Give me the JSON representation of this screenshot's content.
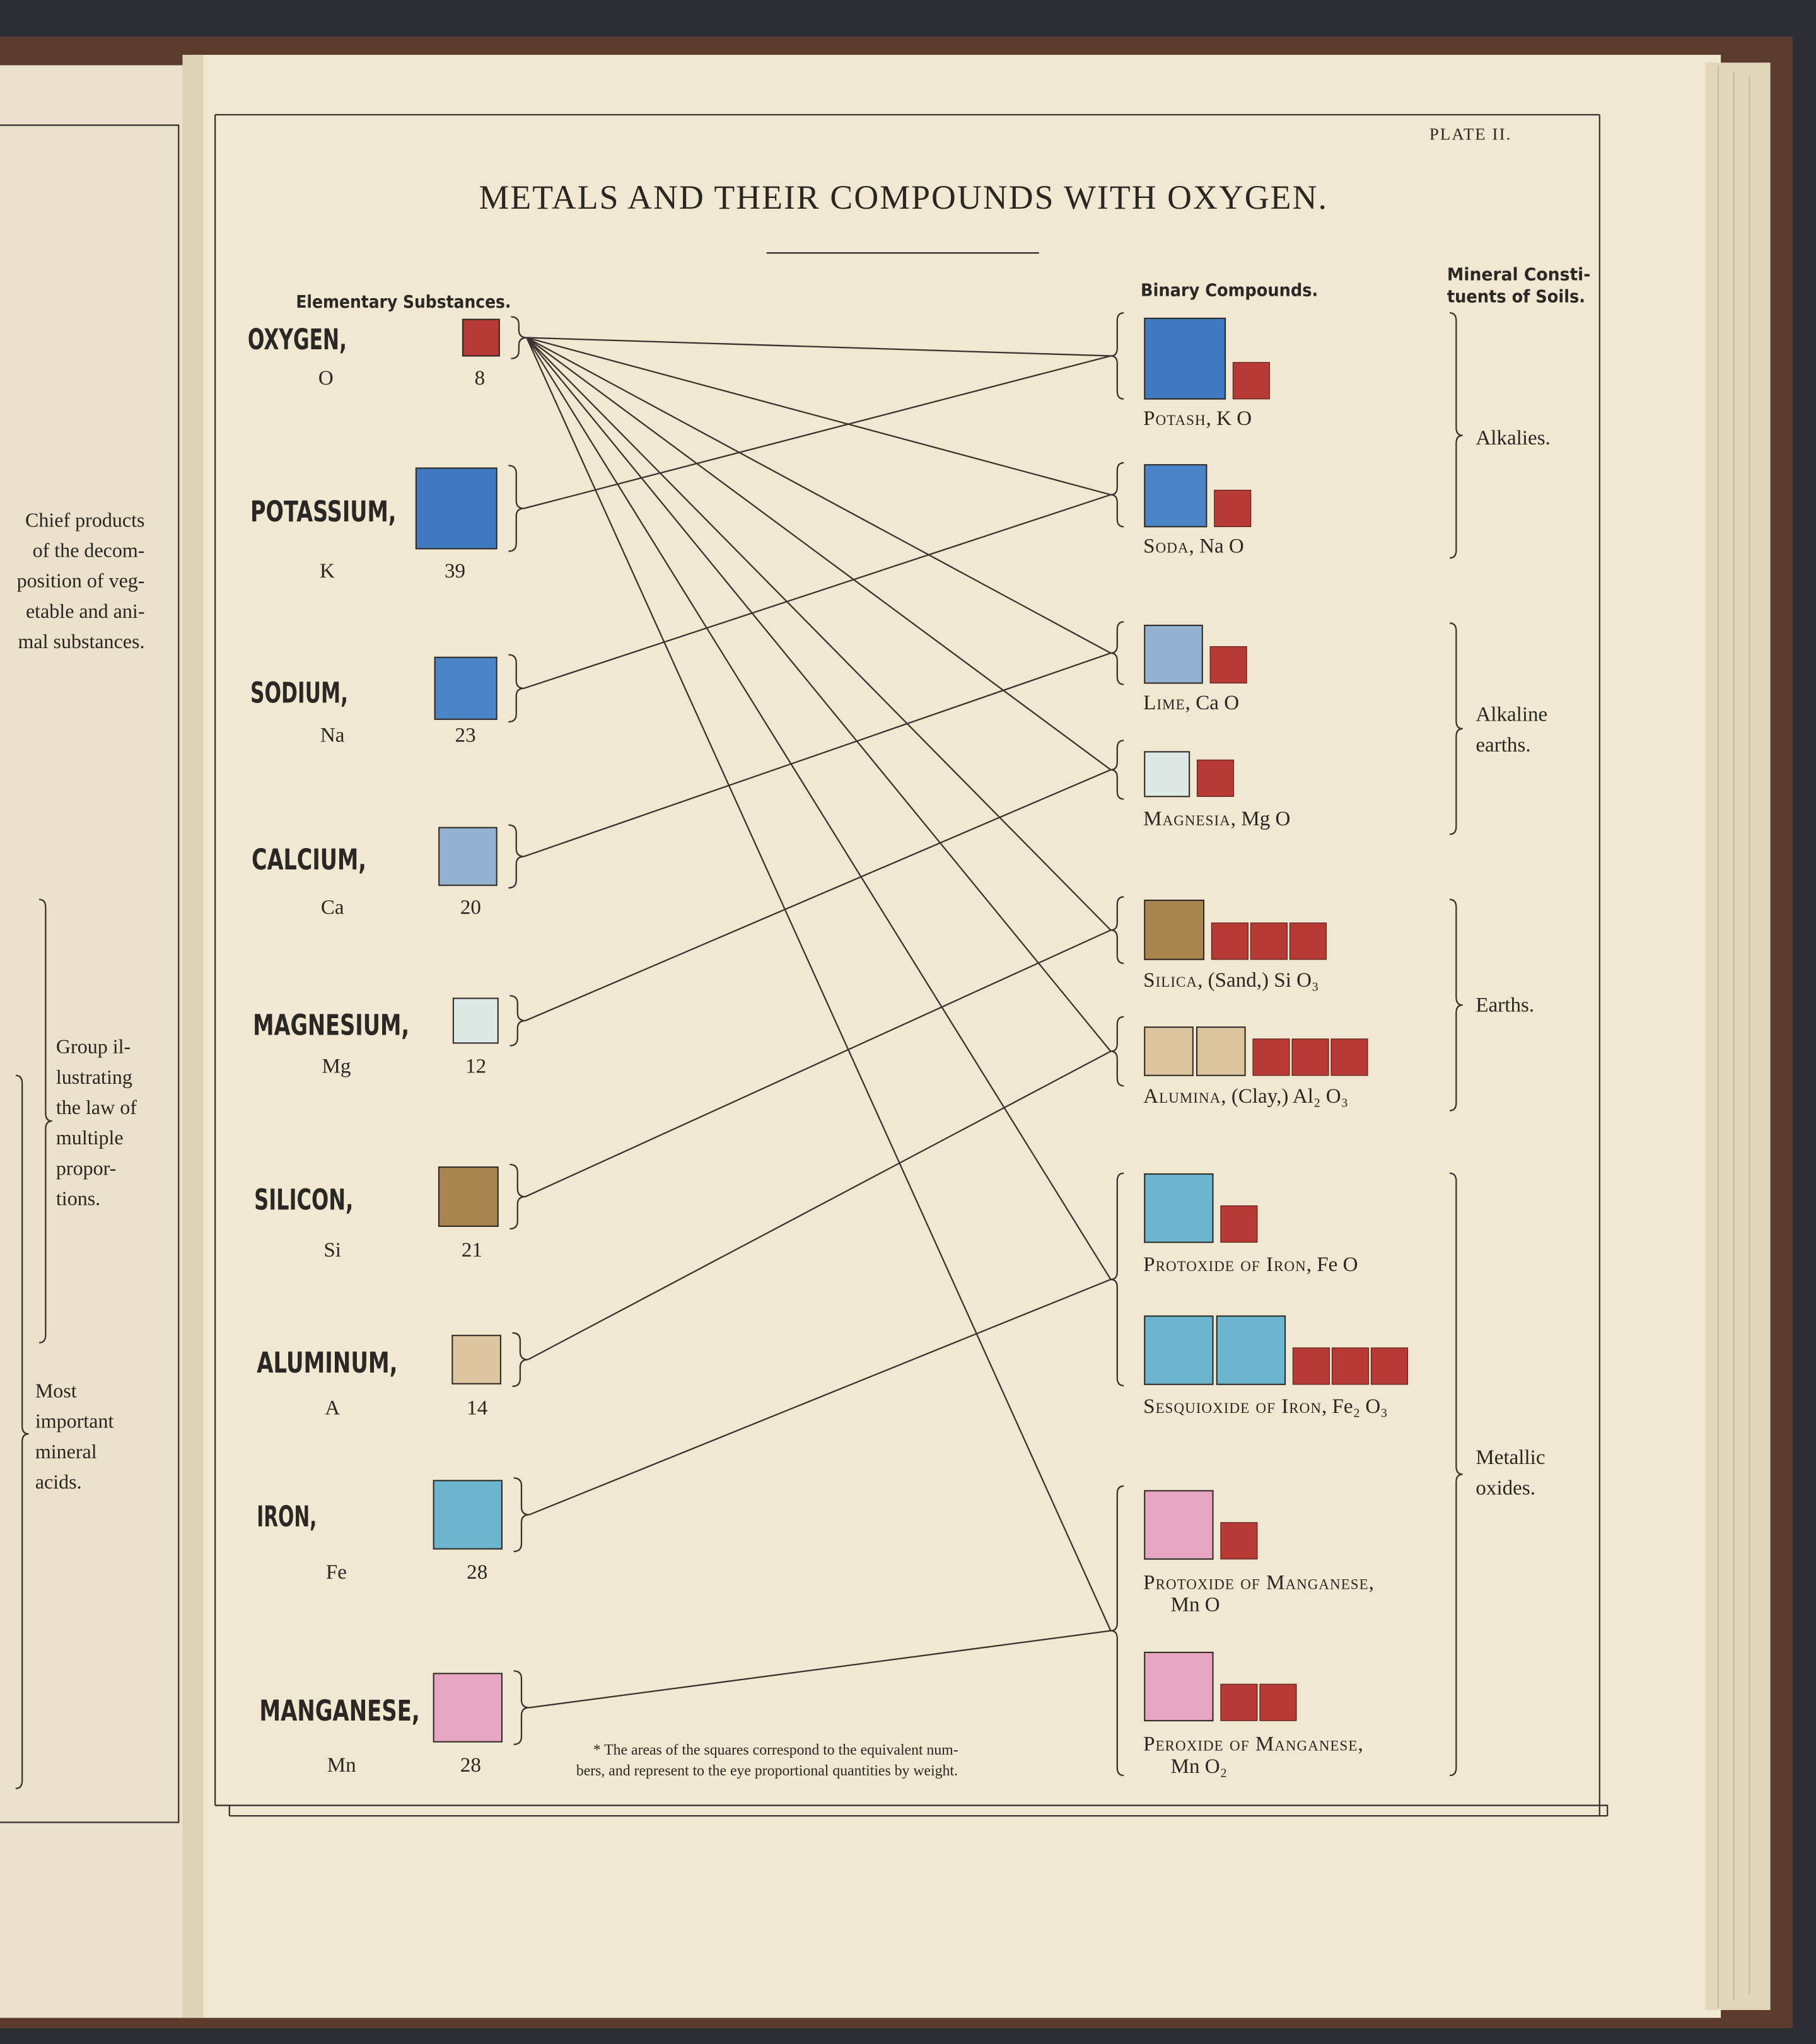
{
  "left_page": {
    "note_1": [
      "Chief products",
      "of the decom-",
      "position of veg-",
      "etable and ani-",
      "mal substances."
    ],
    "note_2": [
      "Group il-",
      "lustrating",
      "the law of",
      "multiple",
      "propor-",
      "tions."
    ],
    "note_3": [
      "Most",
      "important",
      "mineral",
      "acids."
    ]
  },
  "plate": "PLATE II.",
  "title": "METALS AND THEIR COMPOUNDS WITH OXYGEN.",
  "headers": {
    "elementary": "Elementary Substances.",
    "binary": "Binary Compounds.",
    "mineral": [
      "Mineral Consti-",
      "tuents of Soils."
    ]
  },
  "elements": [
    {
      "name": "OXYGEN,",
      "symbol": "O",
      "equivalent": "8"
    },
    {
      "name": "POTASSIUM,",
      "symbol": "K",
      "equivalent": "39"
    },
    {
      "name": "SODIUM,",
      "symbol": "Na",
      "equivalent": "23"
    },
    {
      "name": "CALCIUM,",
      "symbol": "Ca",
      "equivalent": "20"
    },
    {
      "name": "MAGNESIUM,",
      "symbol": "Mg",
      "equivalent": "12"
    },
    {
      "name": "SILICON,",
      "symbol": "Si",
      "equivalent": "21"
    },
    {
      "name": "ALUMINUM,",
      "symbol": "A",
      "equivalent": "14"
    },
    {
      "name": "IRON,",
      "symbol": "Fe",
      "equivalent": "28"
    },
    {
      "name": "MANGANESE,",
      "symbol": "Mn",
      "equivalent": "28"
    }
  ],
  "compounds": [
    {
      "label": [
        "Potash, K O"
      ]
    },
    {
      "label": [
        "Soda, Na O"
      ]
    },
    {
      "label": [
        "Lime, Ca O"
      ]
    },
    {
      "label": [
        "Magnesia, Mg O"
      ]
    },
    {
      "label": [
        "Silica, (Sand,) Si O₃"
      ]
    },
    {
      "label": [
        "Alumina, (Clay,) Al₂ O₃"
      ]
    },
    {
      "label": [
        "Protoxide of Iron, Fe O"
      ]
    },
    {
      "label": [
        "Sesquioxide of Iron, Fe₂ O₃"
      ]
    },
    {
      "label": [
        "Protoxide of Manganese,",
        "Mn O"
      ]
    },
    {
      "label": [
        "Peroxide of Manganese,",
        "Mn O₂"
      ]
    }
  ],
  "groups": [
    {
      "label": [
        "Alkalies."
      ]
    },
    {
      "label": [
        "Alkaline",
        "earths."
      ]
    },
    {
      "label": [
        "Earths."
      ]
    },
    {
      "label": [
        "Metallic",
        "oxides."
      ]
    }
  ],
  "footnote": [
    "* The areas of the squares correspond to the equivalent num-",
    "bers, and represent to the eye proportional quantities by weight."
  ]
}
